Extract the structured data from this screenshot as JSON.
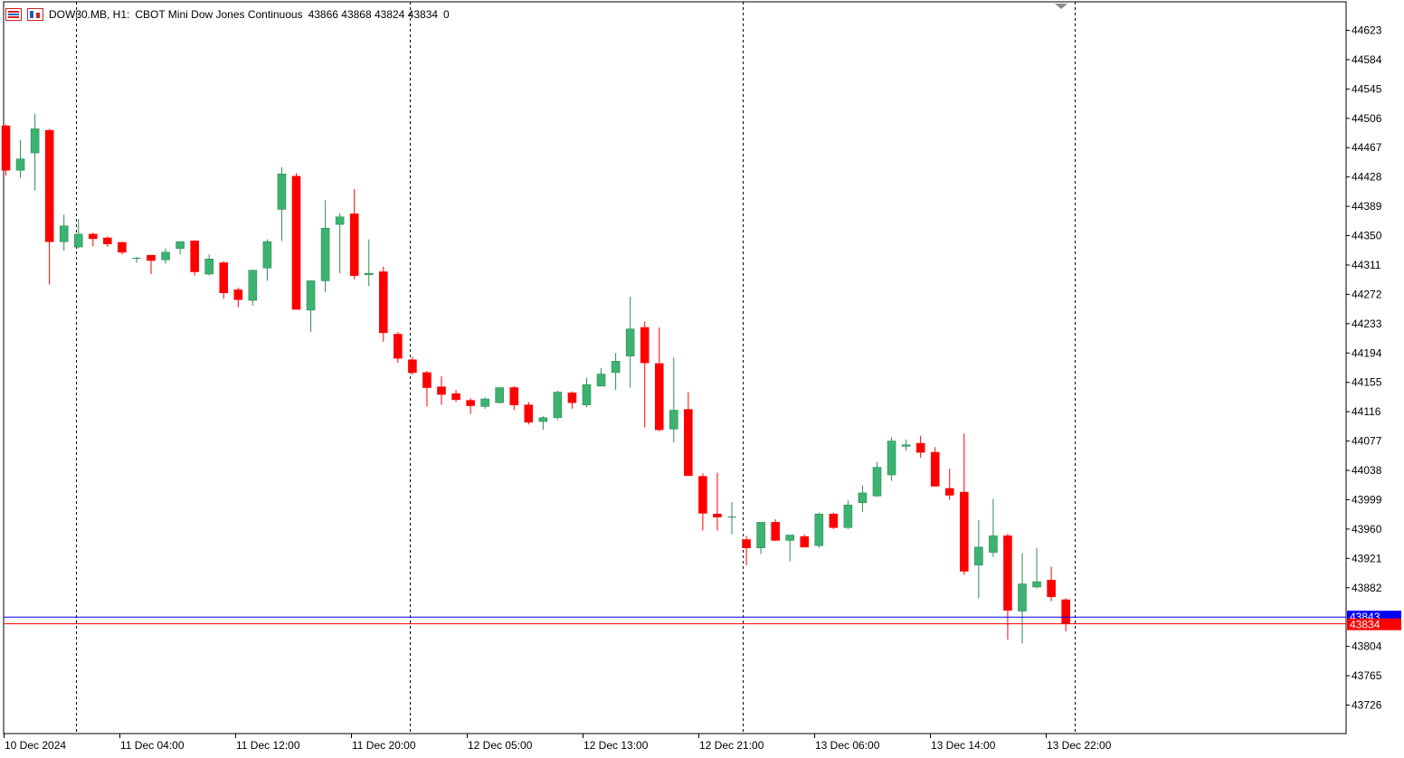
{
  "header": {
    "symbol": "DOW30.MB, H1:",
    "description": "CBOT Mini Dow Jones Continuous",
    "ohlc": "43866 43868 43824 43834",
    "volume": "0"
  },
  "colors": {
    "bull": "#3cb371",
    "bear": "#ff0000",
    "bid_line": "#0000ff",
    "ask_line": "#ff0000"
  },
  "price_axis": {
    "labels": [
      "44623",
      "44584",
      "44545",
      "44506",
      "44467",
      "44428",
      "44389",
      "44350",
      "44311",
      "44272",
      "44233",
      "44194",
      "44155",
      "44116",
      "44077",
      "44038",
      "43999",
      "43960",
      "43921",
      "43882",
      "43804",
      "43765",
      "43726"
    ],
    "current_bid": "43843",
    "current_price": "43834"
  },
  "time_axis": {
    "labels": [
      "10 Dec 2024",
      "11 Dec 04:00",
      "11 Dec 12:00",
      "11 Dec 20:00",
      "12 Dec 05:00",
      "12 Dec 13:00",
      "12 Dec 21:00",
      "13 Dec 06:00",
      "13 Dec 14:00",
      "13 Dec 22:00"
    ]
  },
  "chart_data": {
    "type": "candlestick",
    "title": "",
    "symbol": "DOW30.MB",
    "timeframe": "H1",
    "ylim": [
      43700,
      44650
    ],
    "grid": false,
    "candles": [
      [
        44496,
        44498,
        44430,
        44437
      ],
      [
        44437,
        44477,
        44427,
        44452
      ],
      [
        44460,
        44512,
        44410,
        44492
      ],
      [
        44490,
        44492,
        44285,
        44342
      ],
      [
        44342,
        44378,
        44330,
        44363
      ],
      [
        44335,
        44372,
        44333,
        44352
      ],
      [
        44352,
        44354,
        44336,
        44346
      ],
      [
        44347,
        44349,
        44335,
        44339
      ],
      [
        44341,
        44342,
        44325,
        44328
      ],
      [
        44320,
        44322,
        44314,
        44320
      ],
      [
        44324,
        44324,
        44299,
        44317
      ],
      [
        44318,
        44333,
        44313,
        44328
      ],
      [
        44333,
        44342,
        44325,
        44342
      ],
      [
        44343,
        44344,
        44297,
        44302
      ],
      [
        44299,
        44325,
        44297,
        44319
      ],
      [
        44314,
        44316,
        44266,
        44274
      ],
      [
        44278,
        44281,
        44255,
        44265
      ],
      [
        44264,
        44305,
        44257,
        44304
      ],
      [
        44307,
        44345,
        44290,
        44342
      ],
      [
        44385,
        44441,
        44343,
        44432
      ],
      [
        44429,
        44433,
        44252,
        44252
      ],
      [
        44251,
        44289,
        44222,
        44290
      ],
      [
        44290,
        44397,
        44275,
        44360
      ],
      [
        44365,
        44380,
        44300,
        44375
      ],
      [
        44379,
        44412,
        44292,
        44297
      ],
      [
        44298,
        44345,
        44283,
        44300
      ],
      [
        44302,
        44309,
        44209,
        44221
      ],
      [
        44219,
        44222,
        44181,
        44187
      ],
      [
        44185,
        44189,
        44165,
        44168
      ],
      [
        44168,
        44170,
        44123,
        44148
      ],
      [
        44149,
        44163,
        44125,
        44139
      ],
      [
        44140,
        44145,
        44129,
        44132
      ],
      [
        44131,
        44134,
        44113,
        44124
      ],
      [
        44123,
        44135,
        44120,
        44133
      ],
      [
        44128,
        44147,
        44127,
        44148
      ],
      [
        44148,
        44150,
        44118,
        44125
      ],
      [
        44125,
        44129,
        44099,
        44102
      ],
      [
        44103,
        44110,
        44092,
        44108
      ],
      [
        44108,
        44144,
        44105,
        44142
      ],
      [
        44141,
        44143,
        44120,
        44128
      ],
      [
        44125,
        44161,
        44122,
        44152
      ],
      [
        44150,
        44174,
        44150,
        44166
      ],
      [
        44168,
        44194,
        44145,
        44183
      ],
      [
        44190,
        44269,
        44148,
        44226
      ],
      [
        44228,
        44236,
        44095,
        44181
      ],
      [
        44180,
        44228,
        44090,
        44092
      ],
      [
        44093,
        44188,
        44075,
        44118
      ],
      [
        44119,
        44142,
        44032,
        44031
      ],
      [
        44030,
        44034,
        43958,
        43981
      ],
      [
        43980,
        44035,
        43958,
        43976
      ],
      [
        43976,
        43996,
        43953,
        43976
      ],
      [
        43946,
        43951,
        43912,
        43935
      ],
      [
        43935,
        43969,
        43927,
        43969
      ],
      [
        43969,
        43973,
        43944,
        43945
      ],
      [
        43945,
        43951,
        43917,
        43952
      ],
      [
        43950,
        43953,
        43936,
        43936
      ],
      [
        43938,
        43982,
        43935,
        43980
      ],
      [
        43980,
        43982,
        43960,
        43962
      ],
      [
        43962,
        43998,
        43960,
        43992
      ],
      [
        43995,
        44018,
        43983,
        44008
      ],
      [
        44004,
        44049,
        44003,
        44042
      ],
      [
        44032,
        44082,
        44024,
        44077
      ],
      [
        44070,
        44079,
        44064,
        44072
      ],
      [
        44074,
        44084,
        44055,
        44062
      ],
      [
        44062,
        44069,
        44017,
        44017
      ],
      [
        44014,
        44040,
        43999,
        44005
      ],
      [
        44009,
        44087,
        43899,
        43904
      ],
      [
        43912,
        43972,
        43868,
        43936
      ],
      [
        43929,
        44000,
        43923,
        43951
      ],
      [
        43951,
        43954,
        43813,
        43852
      ],
      [
        43851,
        43928,
        43808,
        43887
      ],
      [
        43883,
        43935,
        43881,
        43890
      ],
      [
        43892,
        43910,
        43864,
        43870
      ],
      [
        43866,
        43868,
        43824,
        43834
      ]
    ]
  }
}
